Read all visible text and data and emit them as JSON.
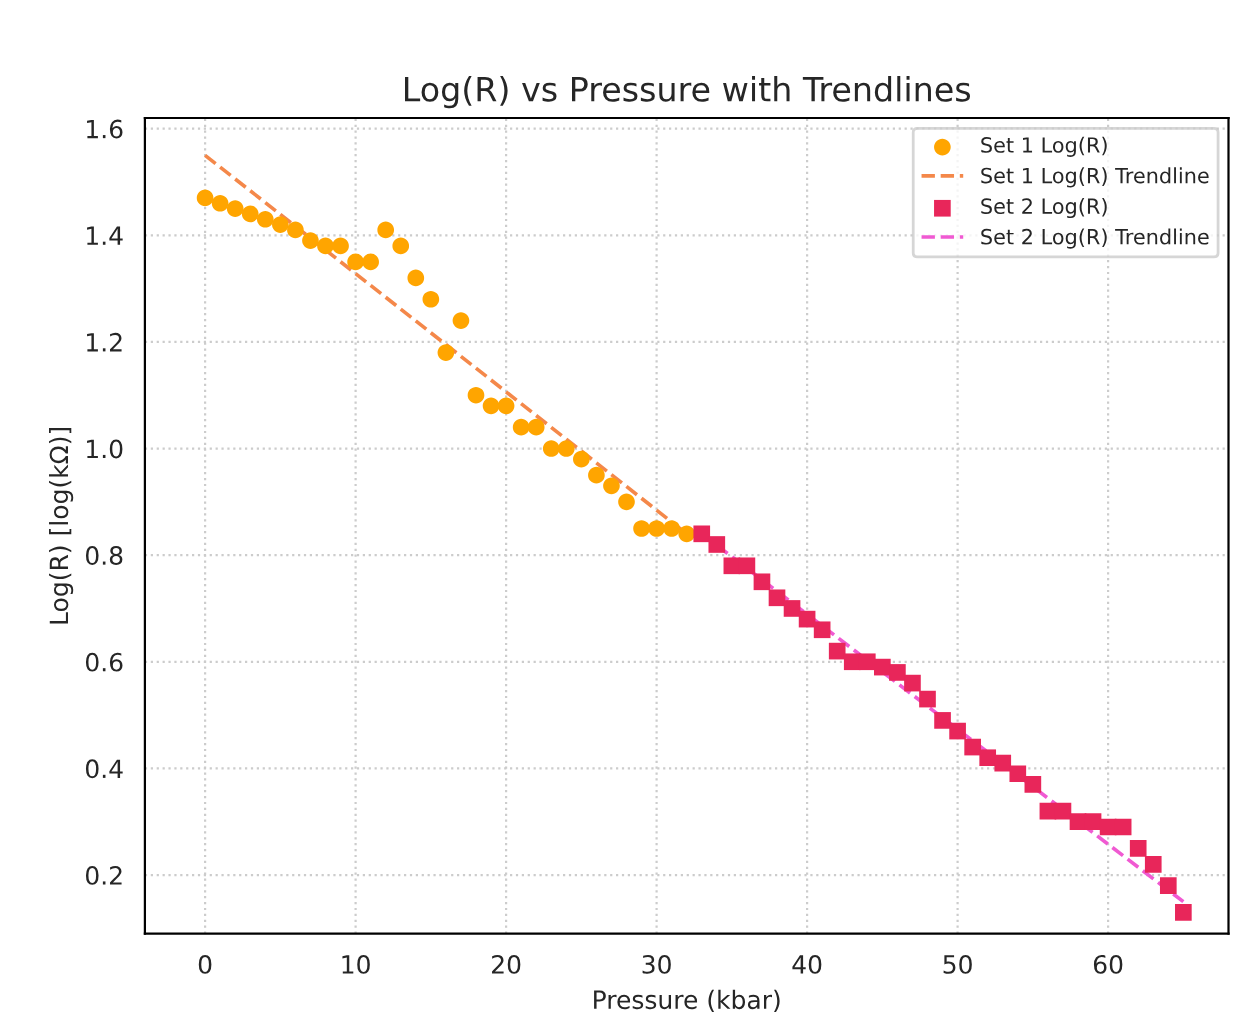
{
  "chart_data": {
    "type": "scatter",
    "title": "Log(R) vs Pressure with Trendlines",
    "xlabel": "Pressure (kbar)",
    "ylabel": "Log(R) [log(kΩ)]",
    "xlim": [
      -4,
      68
    ],
    "ylim": [
      0.09,
      1.62
    ],
    "xticks": [
      0,
      10,
      20,
      30,
      40,
      50,
      60
    ],
    "yticks": [
      0.2,
      0.4,
      0.6,
      0.8,
      {
        "value": 1.0,
        "label": "1.0"
      },
      1.2,
      1.4,
      1.6
    ],
    "grid": true,
    "legend": "top right",
    "series": [
      {
        "name": "Set 1 Log(R)",
        "marker": "circle",
        "color": "#ffa500",
        "x": [
          0,
          1,
          2,
          3,
          4,
          5,
          6,
          7,
          8,
          9,
          10,
          11,
          12,
          13,
          14,
          15,
          16,
          17,
          18,
          19,
          20,
          21,
          22,
          23,
          24,
          25,
          26,
          27,
          28,
          29,
          30,
          31,
          32
        ],
        "values": [
          1.47,
          1.46,
          1.45,
          1.44,
          1.43,
          1.42,
          1.41,
          1.39,
          1.38,
          1.38,
          1.35,
          1.35,
          1.41,
          1.38,
          1.32,
          1.28,
          1.18,
          1.24,
          1.1,
          1.08,
          1.08,
          1.04,
          1.04,
          1.0,
          1.0,
          0.98,
          0.95,
          0.93,
          0.9,
          0.85,
          0.85,
          0.85,
          0.84
        ]
      },
      {
        "name": "Set 1 Log(R) Trendline",
        "type": "line",
        "line_style": "dashed",
        "color": "#f4884a",
        "x": [
          0,
          32
        ],
        "values": [
          1.55,
          0.84
        ]
      },
      {
        "name": "Set 2 Log(R)",
        "marker": "square",
        "color": "#e8265a",
        "x": [
          33,
          34,
          35,
          36,
          37,
          38,
          39,
          40,
          41,
          42,
          43,
          44,
          45,
          46,
          47,
          48,
          49,
          50,
          51,
          52,
          53,
          54,
          55,
          56,
          57,
          58,
          59,
          60,
          61,
          62,
          63,
          64,
          65
        ],
        "values": [
          0.84,
          0.82,
          0.78,
          0.78,
          0.75,
          0.72,
          0.7,
          0.68,
          0.66,
          0.62,
          0.6,
          0.6,
          0.59,
          0.58,
          0.56,
          0.53,
          0.49,
          0.47,
          0.44,
          0.42,
          0.41,
          0.39,
          0.37,
          0.32,
          0.32,
          0.3,
          0.3,
          0.29,
          0.29,
          0.25,
          0.22,
          0.18,
          0.13
        ]
      },
      {
        "name": "Set 2 Log(R) Trendline",
        "type": "line",
        "line_style": "dashed",
        "color": "#f05ad2",
        "x": [
          33,
          65
        ],
        "values": [
          0.84,
          0.15
        ]
      }
    ]
  }
}
